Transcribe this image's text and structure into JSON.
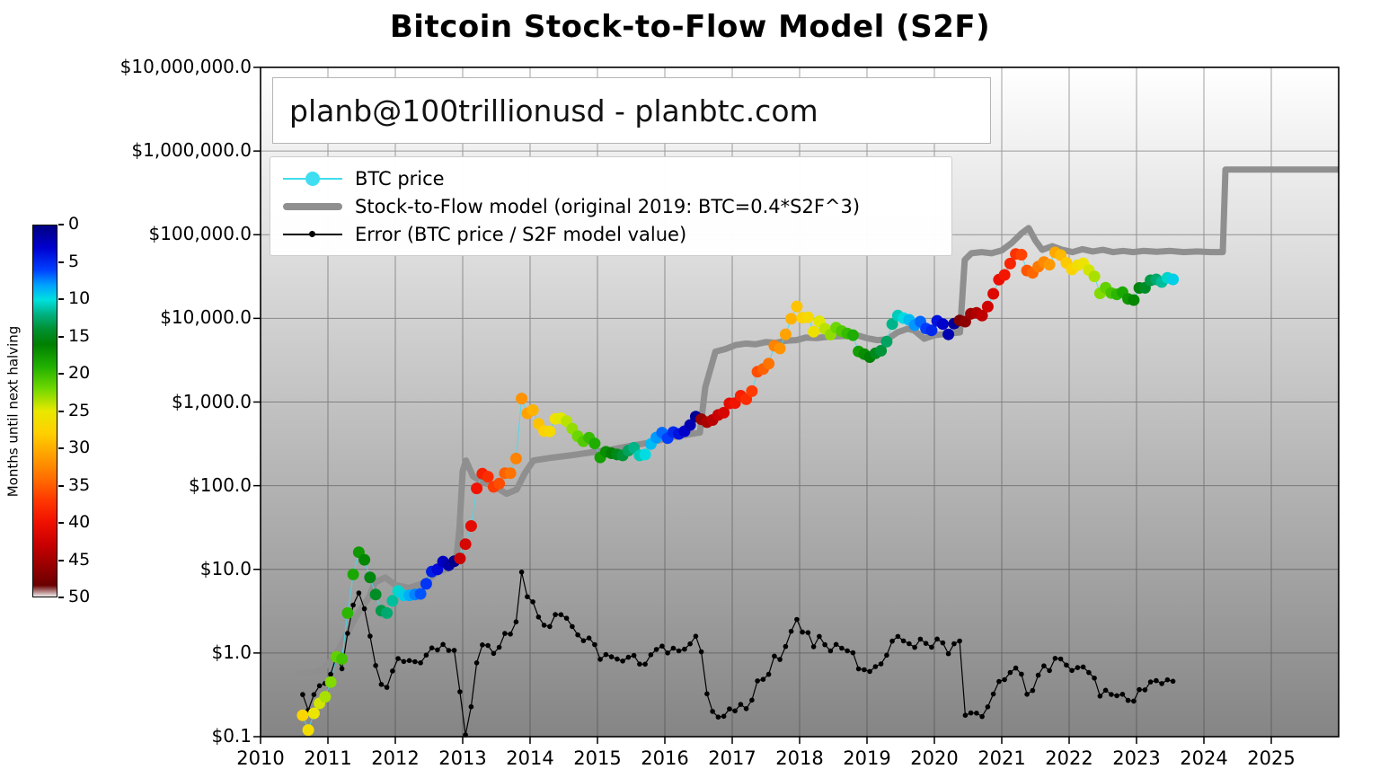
{
  "page": {
    "title": "Bitcoin Stock-to-Flow Model (S2F)"
  },
  "watermark": {
    "text": "planb@100trillionusd  -  planbtc.com"
  },
  "legend": {
    "items": [
      {
        "label": "BTC price",
        "marker": "dot-on-line",
        "color": "#3fdef0"
      },
      {
        "label": "Stock-to-Flow model (original 2019:  BTC=0.4*S2F^3)",
        "marker": "thick-line",
        "color": "#8f8f8f"
      },
      {
        "label": "Error (BTC price / S2F model value)",
        "marker": "dot-on-thin-line",
        "color": "#000000"
      }
    ]
  },
  "colorbar": {
    "label": "Months until next halving",
    "min": 0,
    "max": 50,
    "ticks": [
      0,
      5,
      10,
      15,
      20,
      25,
      30,
      35,
      40,
      45,
      50
    ],
    "stops": [
      [
        0,
        "#000080"
      ],
      [
        3,
        "#0000d0"
      ],
      [
        6,
        "#0040ff"
      ],
      [
        8,
        "#00a0ff"
      ],
      [
        10,
        "#00e0e0"
      ],
      [
        12,
        "#00b080"
      ],
      [
        14,
        "#009030"
      ],
      [
        16,
        "#008000"
      ],
      [
        19,
        "#20b000"
      ],
      [
        22,
        "#70d800"
      ],
      [
        25,
        "#e8e800"
      ],
      [
        28,
        "#ffd000"
      ],
      [
        31,
        "#ffa000"
      ],
      [
        34,
        "#ff7000"
      ],
      [
        37,
        "#ff3800"
      ],
      [
        40,
        "#f01000"
      ],
      [
        43,
        "#c80000"
      ],
      [
        46,
        "#960000"
      ],
      [
        48.5,
        "#6a0000"
      ],
      [
        50,
        "#f0ecec"
      ]
    ]
  },
  "chart_data": {
    "type": "scatter",
    "title": "Bitcoin Stock-to-Flow Model (S2F)",
    "x_axis": {
      "range": [
        2010,
        2026
      ],
      "ticks": [
        2010,
        2011,
        2012,
        2013,
        2014,
        2015,
        2016,
        2017,
        2018,
        2019,
        2020,
        2021,
        2022,
        2023,
        2024,
        2025
      ]
    },
    "y_axis": {
      "scale": "log",
      "range": [
        0.1,
        10000000
      ],
      "tick_values": [
        10000000,
        1000000,
        100000,
        10000,
        1000,
        100,
        10,
        1,
        0.1
      ],
      "tick_labels": [
        "$10,000,000.0",
        "$1,000,000.0",
        "$100,000.0",
        "$10,000.0",
        "$1,000.0",
        "$100.0",
        "$10.0",
        "$1.0",
        "$0.1"
      ]
    },
    "style": {
      "plot_bg_top": "#ffffff",
      "plot_bg_bottom": "#858585",
      "grid_color": "#333333",
      "model_color": "#8f8f8f",
      "price_line_color": "#40dcf0",
      "error_color": "#000000"
    },
    "halving_dates_decimal_years": [
      2012.91,
      2016.53,
      2020.36,
      2024.33
    ],
    "series": {
      "btc_price_monthly": {
        "name": "BTC price",
        "color_by": "months_until_next_halving",
        "start": {
          "year": 2010,
          "month": 8
        },
        "values": [
          0.18,
          0.12,
          0.19,
          0.25,
          0.3,
          0.45,
          0.9,
          0.85,
          3.0,
          8.7,
          16.0,
          13.0,
          8.0,
          5.0,
          3.2,
          3.0,
          4.2,
          5.5,
          4.9,
          4.9,
          5.0,
          5.1,
          6.7,
          9.4,
          10.0,
          12.4,
          11.2,
          12.5,
          13.5,
          20,
          33,
          93,
          139,
          128,
          97,
          106,
          141,
          141,
          211,
          1100,
          732,
          800,
          550,
          450,
          445,
          630,
          640,
          590,
          480,
          390,
          340,
          375,
          320,
          218,
          254,
          244,
          236,
          230,
          263,
          284,
          230,
          236,
          314,
          377,
          430,
          370,
          437,
          416,
          448,
          531,
          670,
          624,
          575,
          610,
          700,
          745,
          963,
          970,
          1190,
          1080,
          1350,
          2300,
          2480,
          2875,
          4700,
          4360,
          6450,
          9900,
          13900,
          10200,
          10300,
          6930,
          9240,
          7500,
          6400,
          7730,
          7030,
          6600,
          6300,
          4020,
          3740,
          3440,
          3820,
          4100,
          5270,
          8560,
          10800,
          10080,
          9600,
          8300,
          9150,
          7550,
          7190,
          9350,
          8550,
          6440,
          8630,
          9450,
          9140,
          11350,
          11650,
          10780,
          13800,
          19700,
          29000,
          33100,
          45200,
          58800,
          57750,
          37300,
          35000,
          41500,
          47100,
          43800,
          61300,
          57000,
          46200,
          38500,
          43200,
          45500,
          37700,
          31800,
          19900,
          23300,
          20050,
          19400,
          20500,
          17100,
          16550,
          23100,
          23150,
          28500,
          29250,
          27200,
          30480,
          29230
        ]
      },
      "s2f_model": {
        "name": "Stock-to-Flow model (original 2019: BTC=0.4*S2F^3)",
        "points": [
          [
            2010.55,
            0.55
          ],
          [
            2010.9,
            0.62
          ],
          [
            2011.1,
            0.9
          ],
          [
            2011.3,
            1.8
          ],
          [
            2011.45,
            3.0
          ],
          [
            2011.6,
            4.5
          ],
          [
            2011.7,
            7
          ],
          [
            2011.85,
            8
          ],
          [
            2012.0,
            6.5
          ],
          [
            2012.2,
            6.0
          ],
          [
            2012.45,
            7
          ],
          [
            2012.6,
            9
          ],
          [
            2012.8,
            10.5
          ],
          [
            2012.9,
            12
          ],
          [
            2012.95,
            30
          ],
          [
            2013.0,
            150
          ],
          [
            2013.05,
            200
          ],
          [
            2013.15,
            130
          ],
          [
            2013.3,
            110
          ],
          [
            2013.5,
            95
          ],
          [
            2013.65,
            80
          ],
          [
            2013.8,
            90
          ],
          [
            2013.92,
            140
          ],
          [
            2014.05,
            200
          ],
          [
            2014.3,
            215
          ],
          [
            2014.6,
            230
          ],
          [
            2014.9,
            250
          ],
          [
            2015.2,
            270
          ],
          [
            2015.5,
            300
          ],
          [
            2015.8,
            330
          ],
          [
            2016.1,
            380
          ],
          [
            2016.35,
            410
          ],
          [
            2016.52,
            430
          ],
          [
            2016.6,
            1500
          ],
          [
            2016.75,
            4000
          ],
          [
            2016.9,
            4300
          ],
          [
            2017.05,
            4800
          ],
          [
            2017.2,
            5000
          ],
          [
            2017.35,
            4900
          ],
          [
            2017.5,
            5200
          ],
          [
            2017.65,
            5100
          ],
          [
            2017.8,
            5400
          ],
          [
            2017.95,
            5500
          ],
          [
            2018.1,
            5900
          ],
          [
            2018.25,
            5800
          ],
          [
            2018.4,
            6000
          ],
          [
            2018.55,
            6100
          ],
          [
            2018.7,
            6200
          ],
          [
            2018.85,
            6300
          ],
          [
            2019.0,
            5800
          ],
          [
            2019.15,
            5500
          ],
          [
            2019.3,
            5600
          ],
          [
            2019.45,
            6800
          ],
          [
            2019.6,
            7500
          ],
          [
            2019.7,
            7200
          ],
          [
            2019.85,
            5700
          ],
          [
            2020.0,
            6300
          ],
          [
            2020.15,
            6500
          ],
          [
            2020.3,
            6700
          ],
          [
            2020.38,
            6800
          ],
          [
            2020.45,
            50000
          ],
          [
            2020.55,
            60000
          ],
          [
            2020.7,
            62000
          ],
          [
            2020.85,
            60000
          ],
          [
            2021.0,
            65000
          ],
          [
            2021.15,
            80000
          ],
          [
            2021.3,
            105000
          ],
          [
            2021.4,
            120000
          ],
          [
            2021.5,
            85000
          ],
          [
            2021.6,
            66000
          ],
          [
            2021.75,
            73000
          ],
          [
            2021.9,
            66000
          ],
          [
            2022.05,
            62000
          ],
          [
            2022.2,
            67000
          ],
          [
            2022.35,
            63000
          ],
          [
            2022.5,
            66000
          ],
          [
            2022.65,
            62000
          ],
          [
            2022.8,
            64000
          ],
          [
            2022.95,
            62000
          ],
          [
            2023.1,
            64000
          ],
          [
            2023.3,
            62500
          ],
          [
            2023.5,
            64000
          ],
          [
            2023.7,
            62000
          ],
          [
            2023.9,
            63000
          ],
          [
            2024.1,
            62000
          ],
          [
            2024.28,
            62000
          ],
          [
            2024.32,
            600000
          ],
          [
            2026.0,
            600000
          ]
        ]
      },
      "error": {
        "name": "Error (BTC price / S2F model value)",
        "definition": "btc_price / s2f_model_value_at_same_month"
      }
    }
  }
}
